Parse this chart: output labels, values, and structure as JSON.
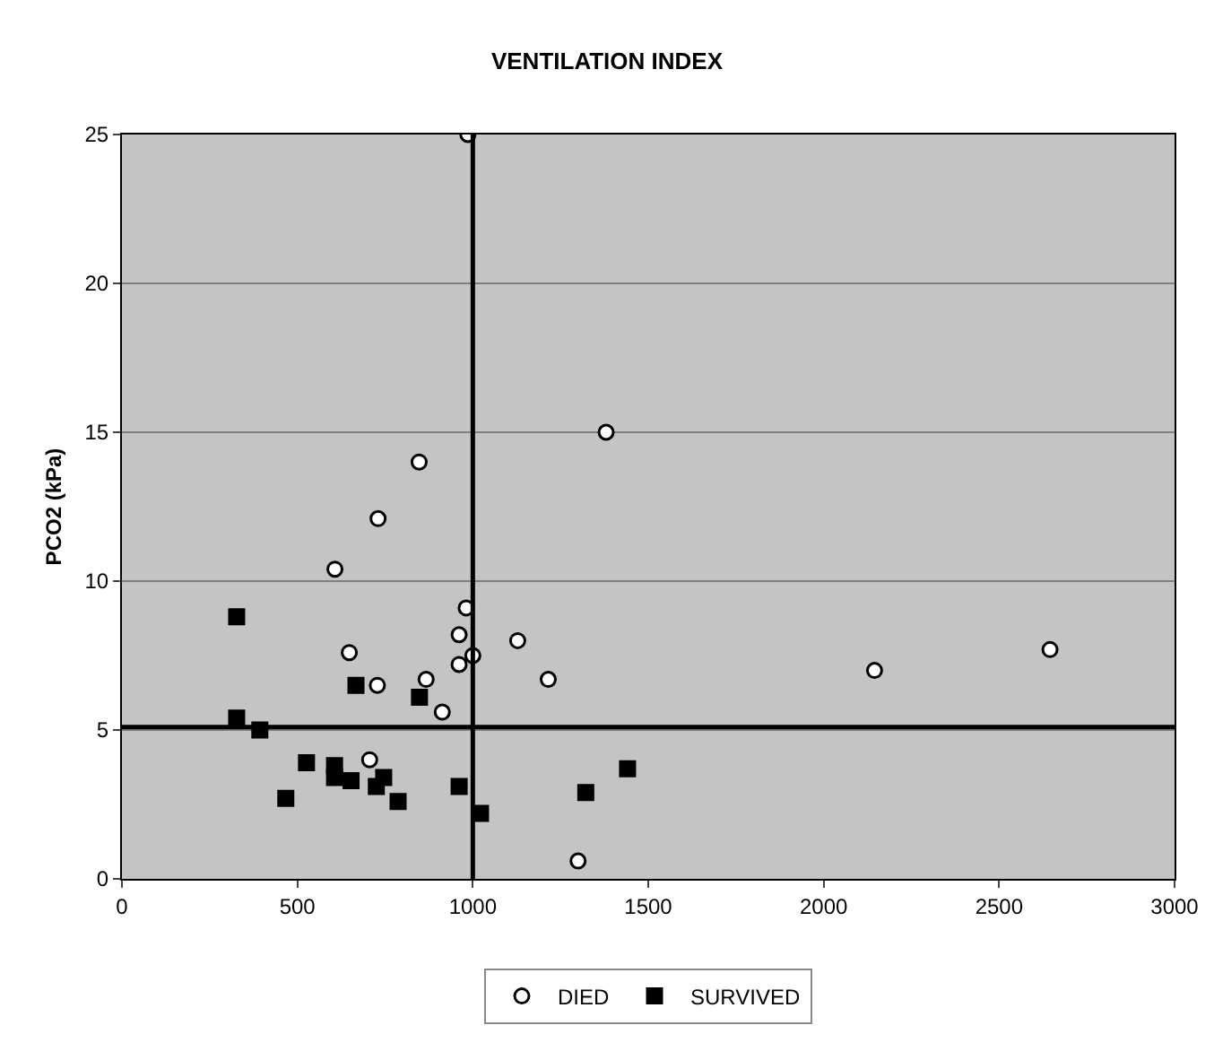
{
  "chart_data": {
    "type": "scatter",
    "title": "VENTILATION INDEX",
    "ylabel": "PCO2 (kPa)",
    "xlim": [
      0,
      3000
    ],
    "xticks": [
      0,
      500,
      1000,
      1500,
      2000,
      2500,
      3000
    ],
    "ylim": [
      0,
      25
    ],
    "yticks": [
      0,
      5,
      10,
      15,
      20,
      25
    ],
    "grid": "y",
    "legend": "bottom",
    "series": [
      {
        "name": "DIED",
        "color": "#ffffff",
        "marker": "circle",
        "x": [
          986,
          1380,
          847,
          730,
          607,
          981,
          961,
          1128,
          648,
          1000,
          961,
          867,
          728,
          913,
          706,
          1215,
          2145,
          2645,
          1300
        ],
        "values": [
          25,
          15,
          14,
          12.1,
          10.4,
          9.1,
          8.2,
          8,
          7.6,
          7.5,
          7.2,
          6.7,
          6.5,
          5.6,
          4,
          6.7,
          7,
          7.7,
          0.6
        ]
      },
      {
        "name": "SURVIVED",
        "color": "#000000",
        "marker": "square",
        "x": [
          327,
          667,
          848,
          327,
          393,
          526,
          606,
          606,
          653,
          746,
          725,
          467,
          787,
          961,
          1022,
          1441,
          1322
        ],
        "values": [
          8.8,
          6.5,
          6.1,
          5.4,
          5,
          3.9,
          3.8,
          3.4,
          3.3,
          3.4,
          3.1,
          2.7,
          2.6,
          3.1,
          2.2,
          3.7,
          2.9
        ]
      }
    ],
    "ref_lines": [
      {
        "axis": "x",
        "value": 1000,
        "color": "#000000"
      },
      {
        "axis": "y",
        "value": 5.1,
        "color": "#000000"
      }
    ]
  }
}
